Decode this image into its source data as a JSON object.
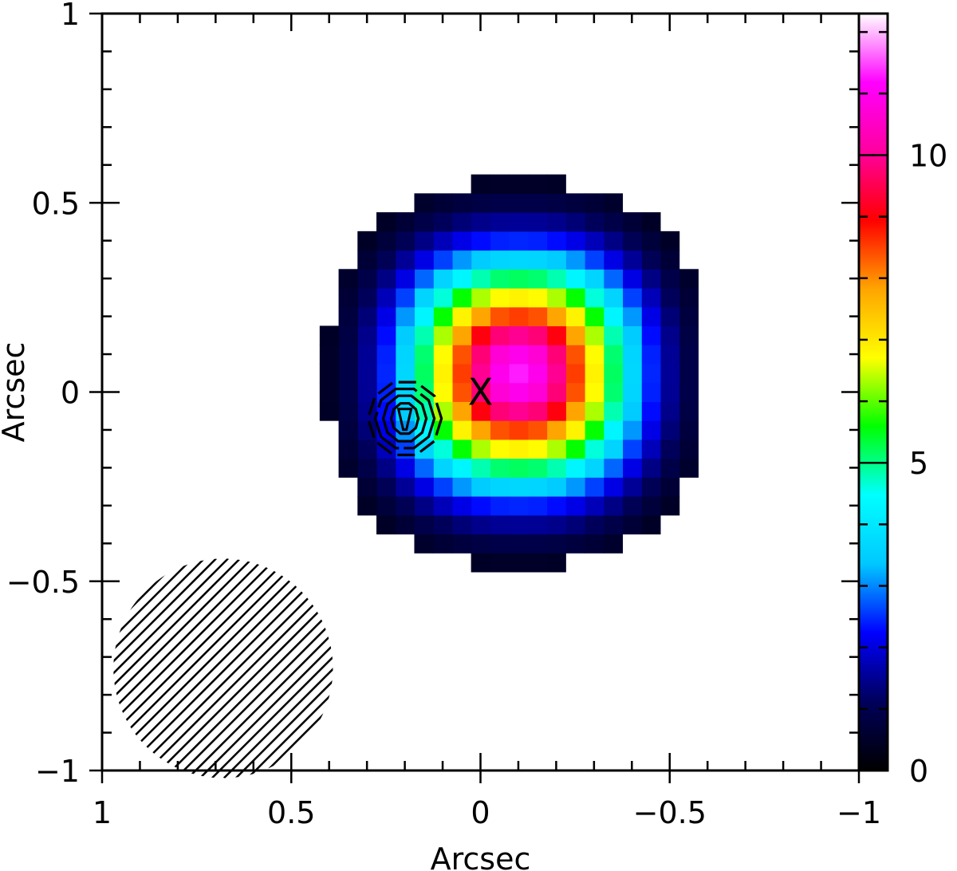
{
  "chart_data": {
    "type": "heatmap",
    "title": "",
    "xlabel": "Arcsec",
    "ylabel": "Arcsec",
    "xlim": [
      1,
      -1
    ],
    "ylim": [
      -1,
      1
    ],
    "x_ticks": [
      {
        "value": 1,
        "label": "1"
      },
      {
        "value": 0.5,
        "label": "0.5"
      },
      {
        "value": 0,
        "label": "0"
      },
      {
        "value": -0.5,
        "label": "−0.5"
      },
      {
        "value": -1,
        "label": "−1"
      }
    ],
    "y_ticks": [
      {
        "value": 1,
        "label": "1"
      },
      {
        "value": 0.5,
        "label": "0.5"
      },
      {
        "value": 0,
        "label": "0"
      },
      {
        "value": -0.5,
        "label": "−0.5"
      },
      {
        "value": -1,
        "label": "−1"
      }
    ],
    "colorbar": {
      "min": 0,
      "max": 12.3,
      "ticks": [
        {
          "value": 0,
          "label": "0"
        },
        {
          "value": 5,
          "label": "5"
        },
        {
          "value": 10,
          "label": "10"
        }
      ],
      "colormap": [
        "#000000",
        "#00005a",
        "#0000ff",
        "#00c8ff",
        "#00ffff",
        "#00ff00",
        "#ffff00",
        "#ffa500",
        "#ff0000",
        "#ff00a0",
        "#ff00ff",
        "#ffffff"
      ]
    },
    "heatmap": {
      "pixel_size_arcsec": 0.05,
      "peak_value": 11.3,
      "peak_x": -0.1,
      "peak_y": 0.05,
      "sigma_x": 0.2,
      "sigma_y": 0.2
    },
    "cross_marker": {
      "x": 0.0,
      "y": 0.0,
      "label": "X"
    },
    "contours": {
      "center_x": 0.2,
      "center_y": -0.07
    },
    "beam": {
      "center_x": 0.68,
      "center_y": -0.73,
      "radius": 0.29
    }
  }
}
